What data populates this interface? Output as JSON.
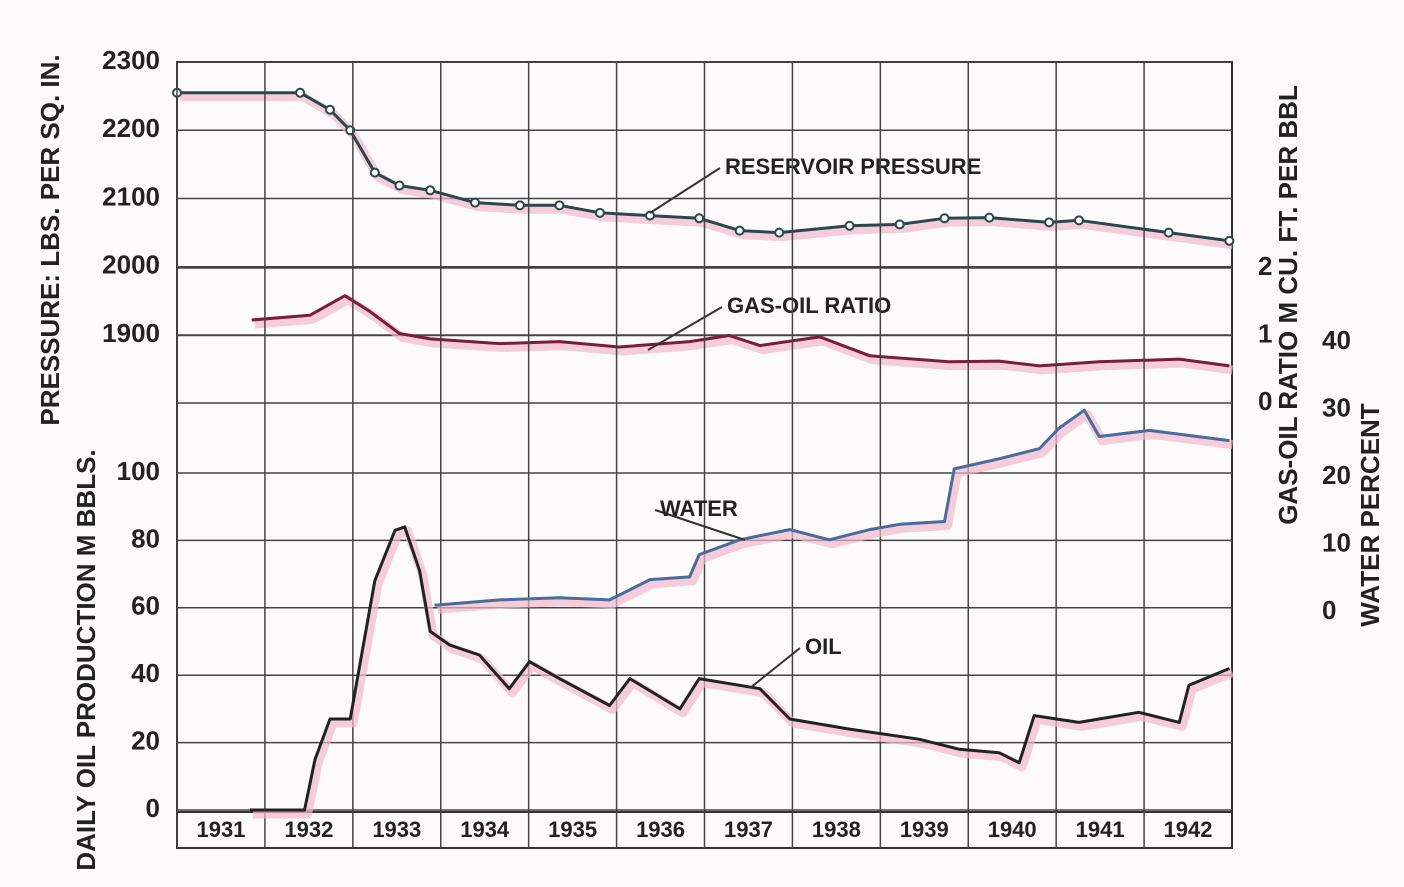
{
  "chart_data": [
    {
      "type": "line",
      "xlim": [
        1931,
        1943
      ],
      "ylim": [
        1900,
        2300
      ],
      "yticks": [
        1900,
        2000,
        2100,
        2200,
        2300
      ],
      "y2lim": [
        0,
        2
      ],
      "y2ticks": [
        0,
        1,
        2
      ],
      "ylabel": "PRESSURE: LBS. PER SQ. IN.",
      "y2label": "GAS-OIL RATIO M CU. FT. PER BBL",
      "grid": true,
      "series": [
        {
          "name": "RESERVOIR PRESSURE",
          "color": "#2b4848",
          "markers": true,
          "x": [
            1931.0,
            1932.4,
            1932.74,
            1932.97,
            1933.25,
            1933.53,
            1933.88,
            1934.39,
            1934.9,
            1935.35,
            1935.81,
            1936.38,
            1936.94,
            1937.4,
            1937.85,
            1938.65,
            1939.22,
            1939.73,
            1940.24,
            1940.92,
            1941.26,
            1942.28,
            1942.97
          ],
          "values": [
            2255,
            2255,
            2230,
            2200,
            2138,
            2119,
            2112,
            2094,
            2090,
            2090,
            2079,
            2075,
            2071,
            2053,
            2050,
            2060,
            2062,
            2071,
            2072,
            2065,
            2068,
            2050,
            2038
          ]
        },
        {
          "name": "GAS-OIL RATIO",
          "color": "#7a1d3c",
          "axis": "y2",
          "x": [
            1931.85,
            1932.51,
            1932.91,
            1933.19,
            1933.53,
            1933.88,
            1934.67,
            1935.35,
            1936.03,
            1936.83,
            1937.28,
            1937.63,
            1938.31,
            1938.88,
            1939.78,
            1940.35,
            1940.81,
            1941.49,
            1942.4,
            1942.97
          ],
          "values": [
            1.23,
            1.3,
            1.59,
            1.36,
            1.03,
            0.95,
            0.88,
            0.91,
            0.83,
            0.91,
            1.0,
            0.85,
            0.98,
            0.7,
            0.61,
            0.62,
            0.55,
            0.61,
            0.65,
            0.55
          ]
        }
      ]
    },
    {
      "type": "line",
      "xlim": [
        1931,
        1943
      ],
      "xticks": [
        {
          "value": 1931,
          "label": "1931"
        },
        {
          "value": 1932,
          "label": "1932"
        },
        {
          "value": 1933,
          "label": "1933"
        },
        {
          "value": 1934,
          "label": "1934"
        },
        {
          "value": 1935,
          "label": "1935"
        },
        {
          "value": 1936,
          "label": "1936"
        },
        {
          "value": 1937,
          "label": "1937"
        },
        {
          "value": 1938,
          "label": "1938"
        },
        {
          "value": 1939,
          "label": "1939"
        },
        {
          "value": 1940,
          "label": "1940"
        },
        {
          "value": 1941,
          "label": "1941"
        },
        {
          "value": 1942,
          "label": "1942"
        }
      ],
      "ylim": [
        0,
        100
      ],
      "yticks": [
        0,
        20,
        40,
        60,
        80,
        100
      ],
      "y2lim": [
        0,
        40
      ],
      "y2ticks": [
        0,
        10,
        20,
        30,
        40
      ],
      "ylabel": "DAILY OIL PRODUCTION M BBLS.",
      "y2label": "WATER PERCENT",
      "grid": true,
      "series": [
        {
          "name": "WATER",
          "color": "#4a6b9c",
          "axis": "y2",
          "x": [
            1933.93,
            1934.67,
            1935.35,
            1935.92,
            1936.38,
            1936.83,
            1936.94,
            1937.4,
            1937.97,
            1938.42,
            1938.88,
            1939.22,
            1939.73,
            1939.84,
            1940.35,
            1940.81,
            1941.03,
            1941.32,
            1941.49,
            1942.06,
            1942.97
          ],
          "values": [
            1.0,
            1.8,
            2.1,
            1.8,
            4.8,
            5.2,
            8.5,
            10.7,
            12.2,
            10.7,
            12.2,
            13.0,
            13.4,
            21.2,
            22.7,
            24.2,
            27.2,
            29.9,
            26.0,
            26.9,
            25.4
          ]
        },
        {
          "name": "OIL",
          "color": "#222222",
          "x": [
            1931.83,
            1932.45,
            1932.57,
            1932.74,
            1932.97,
            1933.25,
            1933.48,
            1933.59,
            1933.76,
            1933.88,
            1934.1,
            1934.44,
            1934.78,
            1935.01,
            1935.35,
            1935.92,
            1936.15,
            1936.72,
            1936.94,
            1937.63,
            1937.97,
            1938.65,
            1939.44,
            1939.9,
            1940.35,
            1940.58,
            1940.75,
            1941.26,
            1941.94,
            1942.4,
            1942.51,
            1942.97
          ],
          "values": [
            0,
            0,
            15,
            27,
            27,
            68,
            83,
            84,
            71,
            53,
            49,
            46,
            36,
            44,
            39,
            31,
            39,
            30,
            39,
            36,
            27,
            24,
            21,
            18,
            17,
            14,
            28,
            26,
            29,
            26,
            37,
            42
          ]
        }
      ]
    }
  ]
}
